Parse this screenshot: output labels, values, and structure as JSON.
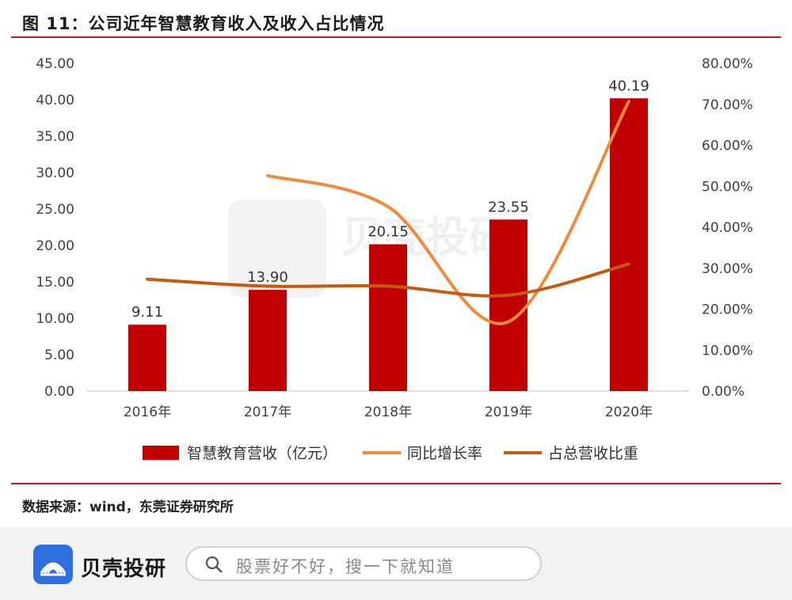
{
  "figure_title": "图 11：公司近年智慧教育收入及收入占比情况",
  "source_note": "数据来源：wind，东莞证券研究所",
  "watermark": "贝壳投研",
  "footer": {
    "brand": "贝壳投研",
    "search_placeholder": "股票好不好，搜一下就知道",
    "search_icon": "search-icon",
    "logo_icon": "shell-logo-icon"
  },
  "colors": {
    "bar": "#c00000",
    "growth": "#ef8b3c",
    "share": "#c55a11",
    "rule": "#c8161d",
    "logo": "#2f6fe0"
  },
  "chart_data": {
    "type": "bar",
    "categories": [
      "2016年",
      "2017年",
      "2018年",
      "2019年",
      "2020年"
    ],
    "series": [
      {
        "name": "智慧教育营收（亿元）",
        "type": "bar",
        "axis": "left",
        "values": [
          9.11,
          13.9,
          20.15,
          23.55,
          40.19
        ],
        "labels": [
          "9.11",
          "13.90",
          "20.15",
          "23.55",
          "40.19"
        ]
      },
      {
        "name": "同比增长率",
        "type": "line",
        "axis": "right",
        "values": [
          null,
          52.6,
          45.0,
          16.9,
          70.7
        ]
      },
      {
        "name": "占总营收比重",
        "type": "line",
        "axis": "right",
        "values": [
          27.3,
          25.6,
          25.6,
          23.4,
          31.0
        ]
      }
    ],
    "y_left": {
      "min": 0,
      "max": 45,
      "step": 5,
      "ticks": [
        "0.00",
        "5.00",
        "10.00",
        "15.00",
        "20.00",
        "25.00",
        "30.00",
        "35.00",
        "40.00",
        "45.00"
      ]
    },
    "y_right": {
      "min": 0,
      "max": 80,
      "step": 10,
      "ticks": [
        "0.00%",
        "10.00%",
        "20.00%",
        "30.00%",
        "40.00%",
        "50.00%",
        "60.00%",
        "70.00%",
        "80.00%"
      ]
    },
    "legend_position": "bottom",
    "grid": false
  }
}
